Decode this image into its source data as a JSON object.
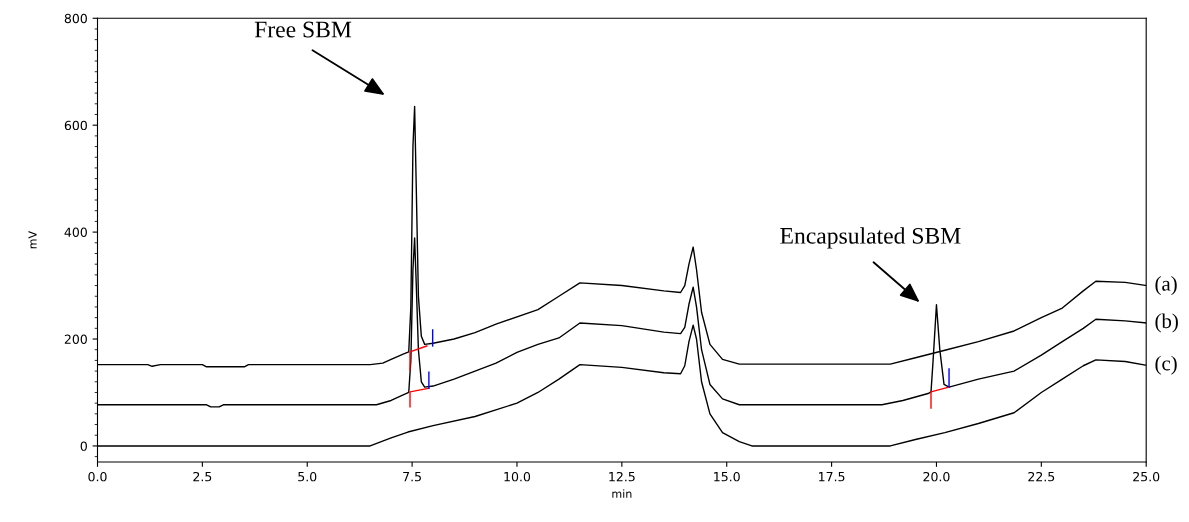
{
  "chart_data": {
    "type": "line",
    "xlabel": "min",
    "ylabel": "mV",
    "xlim": [
      0,
      25
    ],
    "ylim": [
      -30,
      800
    ],
    "xticks": [
      {
        "value": 0,
        "label": "0.0"
      },
      {
        "value": 2.5,
        "label": "2.5"
      },
      {
        "value": 5,
        "label": "5.0"
      },
      {
        "value": 7.5,
        "label": "7.5"
      },
      {
        "value": 10,
        "label": "10.0"
      },
      {
        "value": 12.5,
        "label": "12.5"
      },
      {
        "value": 15,
        "label": "15.0"
      },
      {
        "value": 17.5,
        "label": "17.5"
      },
      {
        "value": 20,
        "label": "20.0"
      },
      {
        "value": 22.5,
        "label": "22.5"
      },
      {
        "value": 25,
        "label": "25.0"
      }
    ],
    "yticks": [
      0,
      200,
      400,
      600,
      800
    ],
    "grid": false,
    "legend": false,
    "marker": "none",
    "line_style": "solid",
    "series": [
      {
        "name": "(a)",
        "color": "#000000",
        "x": [
          0,
          1.2,
          1.3,
          1.5,
          2.5,
          2.6,
          3.5,
          3.6,
          6.5,
          6.8,
          7.0,
          7.3,
          7.42,
          7.47,
          7.52,
          7.56,
          7.6,
          7.65,
          7.72,
          7.8,
          8.0,
          8.5,
          9.0,
          9.5,
          10.5,
          11.0,
          11.5,
          12.5,
          13.5,
          13.9,
          14.0,
          14.1,
          14.2,
          14.28,
          14.4,
          14.6,
          14.9,
          15.3,
          18.9,
          19.5,
          20.2,
          21.0,
          21.85,
          22.5,
          23.0,
          23.5,
          23.8,
          24.5,
          25.0
        ],
        "values": [
          152,
          152,
          149,
          152,
          152,
          148,
          148,
          152,
          152,
          155,
          162,
          172,
          176,
          260,
          560,
          635,
          480,
          280,
          205,
          190,
          192,
          200,
          212,
          228,
          255,
          280,
          305,
          300,
          290,
          287,
          300,
          340,
          372,
          330,
          250,
          190,
          162,
          153,
          153,
          165,
          179,
          195,
          215,
          240,
          258,
          290,
          308,
          306,
          300
        ]
      },
      {
        "name": "(b)",
        "color": "#000000",
        "x": [
          0,
          2.6,
          2.7,
          2.9,
          3.0,
          6.65,
          7.0,
          7.3,
          7.42,
          7.47,
          7.52,
          7.56,
          7.6,
          7.65,
          7.72,
          7.8,
          8.0,
          8.5,
          9.0,
          9.5,
          10.0,
          10.5,
          11.0,
          11.5,
          12.5,
          13.5,
          13.9,
          14.0,
          14.1,
          14.2,
          14.28,
          14.4,
          14.6,
          14.9,
          15.3,
          18.7,
          19.2,
          19.8,
          19.87,
          19.92,
          20.0,
          20.08,
          20.18,
          20.3,
          21.0,
          21.85,
          22.5,
          23.0,
          23.5,
          23.8,
          24.5,
          25.0
        ],
        "values": [
          77,
          77,
          73,
          73,
          77,
          77,
          85,
          96,
          100,
          160,
          330,
          389,
          300,
          180,
          120,
          110,
          112,
          125,
          140,
          155,
          175,
          190,
          202,
          230,
          225,
          213,
          210,
          222,
          265,
          297,
          260,
          180,
          115,
          88,
          77,
          77,
          85,
          98,
          101,
          160,
          264,
          180,
          115,
          110,
          125,
          140,
          170,
          195,
          220,
          237,
          234,
          230
        ]
      },
      {
        "name": "(c)",
        "color": "#000000",
        "x": [
          0,
          6.5,
          7.0,
          7.4,
          8.0,
          9.0,
          10.0,
          10.5,
          11.0,
          11.5,
          12.5,
          13.5,
          13.9,
          14.0,
          14.1,
          14.2,
          14.28,
          14.4,
          14.6,
          14.9,
          15.3,
          15.6,
          18.9,
          19.5,
          20.2,
          21.0,
          21.85,
          22.5,
          23.0,
          23.5,
          23.8,
          24.5,
          25.0
        ],
        "values": [
          0,
          0,
          15,
          26,
          38,
          55,
          80,
          100,
          125,
          152,
          147,
          137,
          135,
          150,
          195,
          226,
          200,
          120,
          60,
          25,
          8,
          0,
          0,
          12,
          25,
          42,
          62,
          100,
          125,
          150,
          161,
          158,
          151
        ]
      },
      {
        "color": "#ff0000",
        "x": [
          7.45,
          7.45,
          7.85
        ],
        "values": [
          142,
          176,
          187
        ]
      },
      {
        "color": "#0000ff",
        "x": [
          7.99,
          7.99
        ],
        "values": [
          187,
          217
        ]
      },
      {
        "color": "#ff0000",
        "x": [
          7.45,
          7.45,
          7.9
        ],
        "values": [
          73,
          101,
          108
        ]
      },
      {
        "color": "#0000ff",
        "x": [
          7.9,
          7.9
        ],
        "values": [
          108,
          138
        ]
      },
      {
        "color": "#ff0000",
        "x": [
          19.87,
          19.87,
          20.3
        ],
        "values": [
          71,
          101,
          110
        ]
      },
      {
        "color": "#0000ff",
        "x": [
          20.3,
          20.3
        ],
        "values": [
          110,
          144
        ]
      }
    ],
    "annotations": [
      "Free SBM",
      "Encapsulated SBM"
    ]
  }
}
